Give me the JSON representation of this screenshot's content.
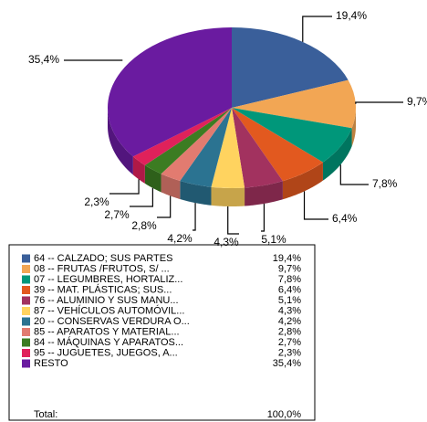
{
  "chart_data": {
    "type": "pie3d",
    "categories": [
      "64 -- CALZADO; SUS PARTES",
      "08 -- FRUTAS /FRUTOS, S/ ...",
      "07 -- LEGUMBRES, HORTALIZ...",
      "39 -- MAT. PLÁSTICAS; SUS...",
      "76 -- ALUMINIO Y SUS MANU...",
      "87 -- VEHÍCULOS AUTOMÓVIL...",
      "20 -- CONSERVAS VERDURA O...",
      "85 -- APARATOS Y MATERIAL...",
      "84 -- MÁQUINAS Y APARATOS...",
      "95 -- JUGUETES, JUEGOS, A...",
      "RESTO"
    ],
    "values": [
      19.4,
      9.7,
      7.8,
      6.4,
      5.1,
      4.3,
      4.2,
      2.8,
      2.7,
      2.3,
      35.4
    ],
    "value_labels": [
      "19,4%",
      "9,7%",
      "7,8%",
      "6,4%",
      "5,1%",
      "4,3%",
      "4,2%",
      "2,8%",
      "2,7%",
      "2,3%",
      "35,4%"
    ],
    "colors": [
      "#3a5f9a",
      "#f2a654",
      "#00977a",
      "#e2591f",
      "#a2325f",
      "#ffd35f",
      "#2b7391",
      "#e27b70",
      "#3c7c22",
      "#e0215b",
      "#6a1ba0"
    ],
    "total": {
      "label": "Total:",
      "value": "100,0%"
    }
  }
}
